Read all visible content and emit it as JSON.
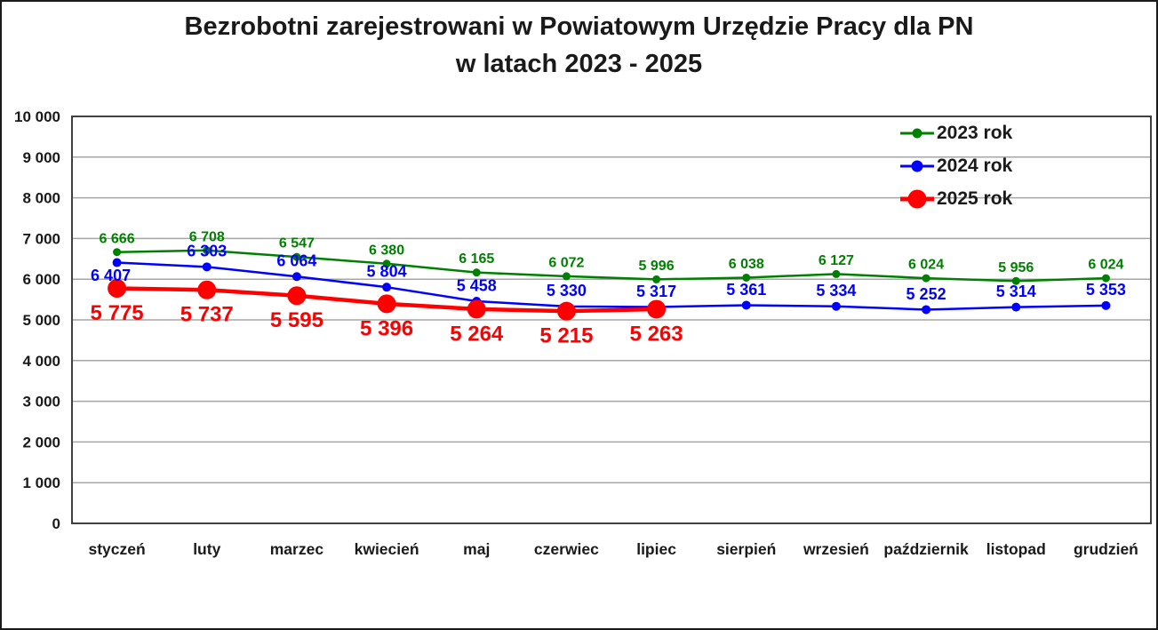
{
  "title": {
    "line1": "Bezrobotni zarejestrowani w Powiatowym Urzędzie Pracy dla PN",
    "line2": "w latach 2023 - 2025"
  },
  "colors": {
    "gridline": "#A6A6A6",
    "plot_border": "#404040",
    "axis_text": "#1a1a1a",
    "series_2023": "#008000",
    "series_2024": "#0000FF",
    "series_2025": "#FF0000"
  },
  "chart_data": {
    "type": "line",
    "title": "Bezrobotni zarejestrowani w Powiatowym Urzędzie Pracy dla PN w latach 2023 - 2025",
    "categories": [
      "styczeń",
      "luty",
      "marzec",
      "kwiecień",
      "maj",
      "czerwiec",
      "lipiec",
      "sierpień",
      "wrzesień",
      "październik",
      "listopad",
      "grudzień"
    ],
    "series": [
      {
        "name": "2023 rok",
        "color": "#008000",
        "values": [
          6666,
          6708,
          6547,
          6380,
          6165,
          6072,
          5996,
          6038,
          6127,
          6024,
          5956,
          6024
        ]
      },
      {
        "name": "2024 rok",
        "color": "#0000FF",
        "values": [
          6407,
          6303,
          6064,
          5804,
          5458,
          5330,
          5317,
          5361,
          5334,
          5252,
          5314,
          5353
        ]
      },
      {
        "name": "2025 rok",
        "color": "#FF0000",
        "values": [
          5775,
          5737,
          5595,
          5396,
          5264,
          5215,
          5263
        ]
      }
    ],
    "ylim": [
      0,
      10000
    ],
    "ytick_step": 1000,
    "ytick_labels": [
      "0",
      "1 000",
      "2 000",
      "3 000",
      "4 000",
      "5 000",
      "6 000",
      "7 000",
      "8 000",
      "9 000",
      "10 000"
    ],
    "grid": "horizontal",
    "legend_position": "top-right-inside",
    "data_labels": true,
    "number_format": "space-thousands",
    "xlabel": "",
    "ylabel": ""
  }
}
